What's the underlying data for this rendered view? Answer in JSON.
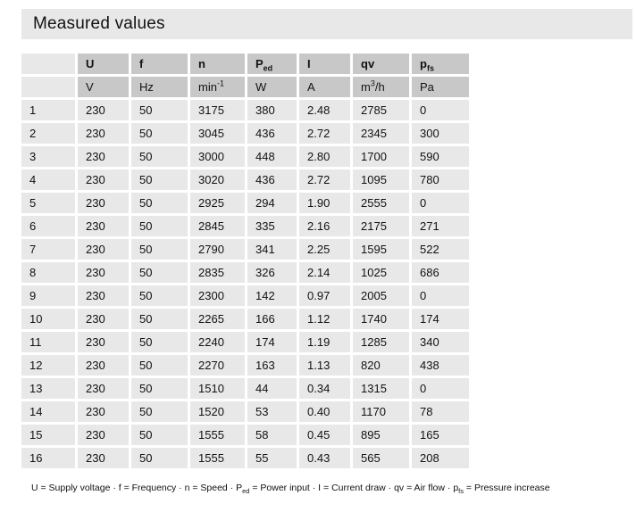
{
  "title": "Measured values",
  "colors": {
    "header_cell_bg": "#c8c8c8",
    "data_cell_bg": "#e8e8e8",
    "title_bar_bg": "#e8e8e8",
    "text": "#121212",
    "page_bg": "#ffffff"
  },
  "table": {
    "columns": [
      {
        "label": "",
        "unit": ""
      },
      {
        "label": "U",
        "unit": "V"
      },
      {
        "label": "f",
        "unit": "Hz"
      },
      {
        "label": "n",
        "unit": "min",
        "unit_sup": "-1"
      },
      {
        "label": "P",
        "label_sub": "ed",
        "unit": "W"
      },
      {
        "label": "I",
        "unit": "A"
      },
      {
        "label": "qv",
        "unit": "m",
        "unit_sup": "3",
        "unit_suffix": "/h"
      },
      {
        "label": "p",
        "label_sub": "fs",
        "unit": "Pa"
      }
    ],
    "rows": [
      [
        "1",
        "230",
        "50",
        "3175",
        "380",
        "2.48",
        "2785",
        "0"
      ],
      [
        "2",
        "230",
        "50",
        "3045",
        "436",
        "2.72",
        "2345",
        "300"
      ],
      [
        "3",
        "230",
        "50",
        "3000",
        "448",
        "2.80",
        "1700",
        "590"
      ],
      [
        "4",
        "230",
        "50",
        "3020",
        "436",
        "2.72",
        "1095",
        "780"
      ],
      [
        "5",
        "230",
        "50",
        "2925",
        "294",
        "1.90",
        "2555",
        "0"
      ],
      [
        "6",
        "230",
        "50",
        "2845",
        "335",
        "2.16",
        "2175",
        "271"
      ],
      [
        "7",
        "230",
        "50",
        "2790",
        "341",
        "2.25",
        "1595",
        "522"
      ],
      [
        "8",
        "230",
        "50",
        "2835",
        "326",
        "2.14",
        "1025",
        "686"
      ],
      [
        "9",
        "230",
        "50",
        "2300",
        "142",
        "0.97",
        "2005",
        "0"
      ],
      [
        "10",
        "230",
        "50",
        "2265",
        "166",
        "1.12",
        "1740",
        "174"
      ],
      [
        "11",
        "230",
        "50",
        "2240",
        "174",
        "1.19",
        "1285",
        "340"
      ],
      [
        "12",
        "230",
        "50",
        "2270",
        "163",
        "1.13",
        "820",
        "438"
      ],
      [
        "13",
        "230",
        "50",
        "1510",
        "44",
        "0.34",
        "1315",
        "0"
      ],
      [
        "14",
        "230",
        "50",
        "1520",
        "53",
        "0.40",
        "1170",
        "78"
      ],
      [
        "15",
        "230",
        "50",
        "1555",
        "58",
        "0.45",
        "895",
        "165"
      ],
      [
        "16",
        "230",
        "50",
        "1555",
        "55",
        "0.43",
        "565",
        "208"
      ]
    ]
  },
  "footnote": {
    "segments": [
      {
        "text": "U = Supply voltage · f = Frequency · n = Speed · P"
      },
      {
        "sub": "ed"
      },
      {
        "text": " = Power input · I = Current draw · qv = Air flow · p"
      },
      {
        "sub": "fs"
      },
      {
        "text": " = Pressure increase"
      }
    ]
  }
}
